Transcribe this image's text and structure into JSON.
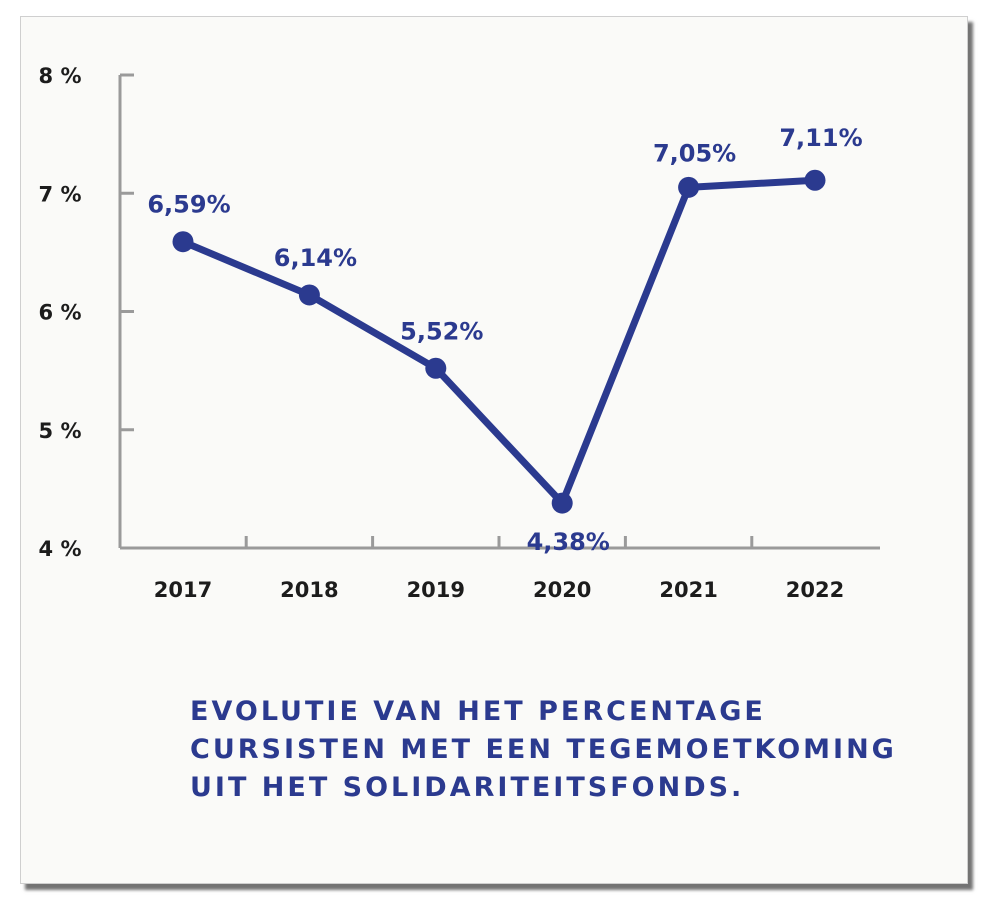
{
  "chart_data": {
    "type": "line",
    "categories": [
      "2017",
      "2018",
      "2019",
      "2020",
      "2021",
      "2022"
    ],
    "series": [
      {
        "values": [
          6.59,
          6.14,
          5.52,
          4.38,
          7.05,
          7.11
        ]
      }
    ],
    "data_labels": [
      "6,59%",
      "6,14%",
      "5,52%",
      "4,38%",
      "7,05%",
      "7,11%"
    ],
    "yticks": [
      4,
      5,
      6,
      7,
      8
    ],
    "ytick_labels": [
      "4 %",
      "5 %",
      "6 %",
      "7 %",
      "8 %"
    ],
    "ylim": [
      4,
      8
    ],
    "grid": false,
    "legend": "none",
    "line_color": "#2b3a8f",
    "axis_color": "#9a9a9a",
    "tick_label_color": "#1c1c1c"
  },
  "caption": {
    "line1": "EVOLUTIE VAN HET PERCENTAGE",
    "line2": "CURSISTEN MET EEN TEGEMOETKOMING",
    "line3": "UIT HET SOLIDARITEITSFONDS."
  }
}
